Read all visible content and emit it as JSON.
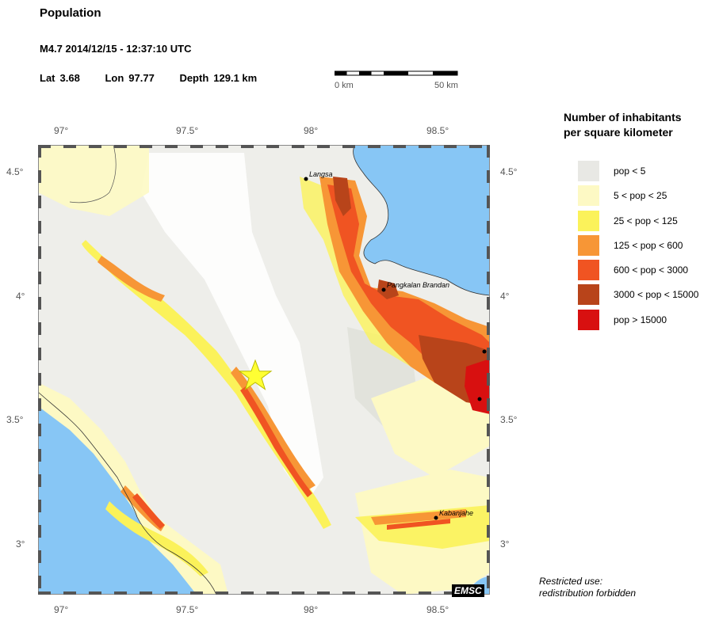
{
  "header": {
    "title": "Population",
    "event": "M4.7  2014/12/15 - 12:37:10 UTC",
    "lat_label": "Lat",
    "lat_value": "3.68",
    "lon_label": "Lon",
    "lon_value": "97.77",
    "depth_label": "Depth",
    "depth_value": "129.1 km"
  },
  "scale": {
    "start_label": "0 km",
    "end_label": "50 km"
  },
  "axes": {
    "lon_ticks": [
      "97°",
      "97.5°",
      "98°",
      "98.5°"
    ],
    "lat_ticks": [
      "4.5°",
      "4°",
      "3.5°",
      "3°"
    ]
  },
  "map": {
    "cities": [
      {
        "name": "Langsa"
      },
      {
        "name": "Pangkalan Brandan"
      },
      {
        "name": "Kabanjahe"
      }
    ],
    "epicenter_color": "#ffff33",
    "sea_color": "#87c6f5"
  },
  "legend": {
    "title_line1": "Number of inhabitants",
    "title_line2": "per square kilometer",
    "items": [
      {
        "label": "pop < 5",
        "color": "#e8e8e4"
      },
      {
        "label": "5 < pop < 25",
        "color": "#fdf9c4"
      },
      {
        "label": "25 < pop < 125",
        "color": "#fbf25a"
      },
      {
        "label": "125 < pop < 600",
        "color": "#f79636"
      },
      {
        "label": "600 < pop < 3000",
        "color": "#f05422"
      },
      {
        "label": "3000 < pop < 15000",
        "color": "#b8441a"
      },
      {
        "label": "pop > 15000",
        "color": "#d81010"
      }
    ]
  },
  "footer": {
    "restricted_line1": "Restricted use:",
    "restricted_line2": "redistribution forbidden",
    "watermark": "EMSC"
  }
}
